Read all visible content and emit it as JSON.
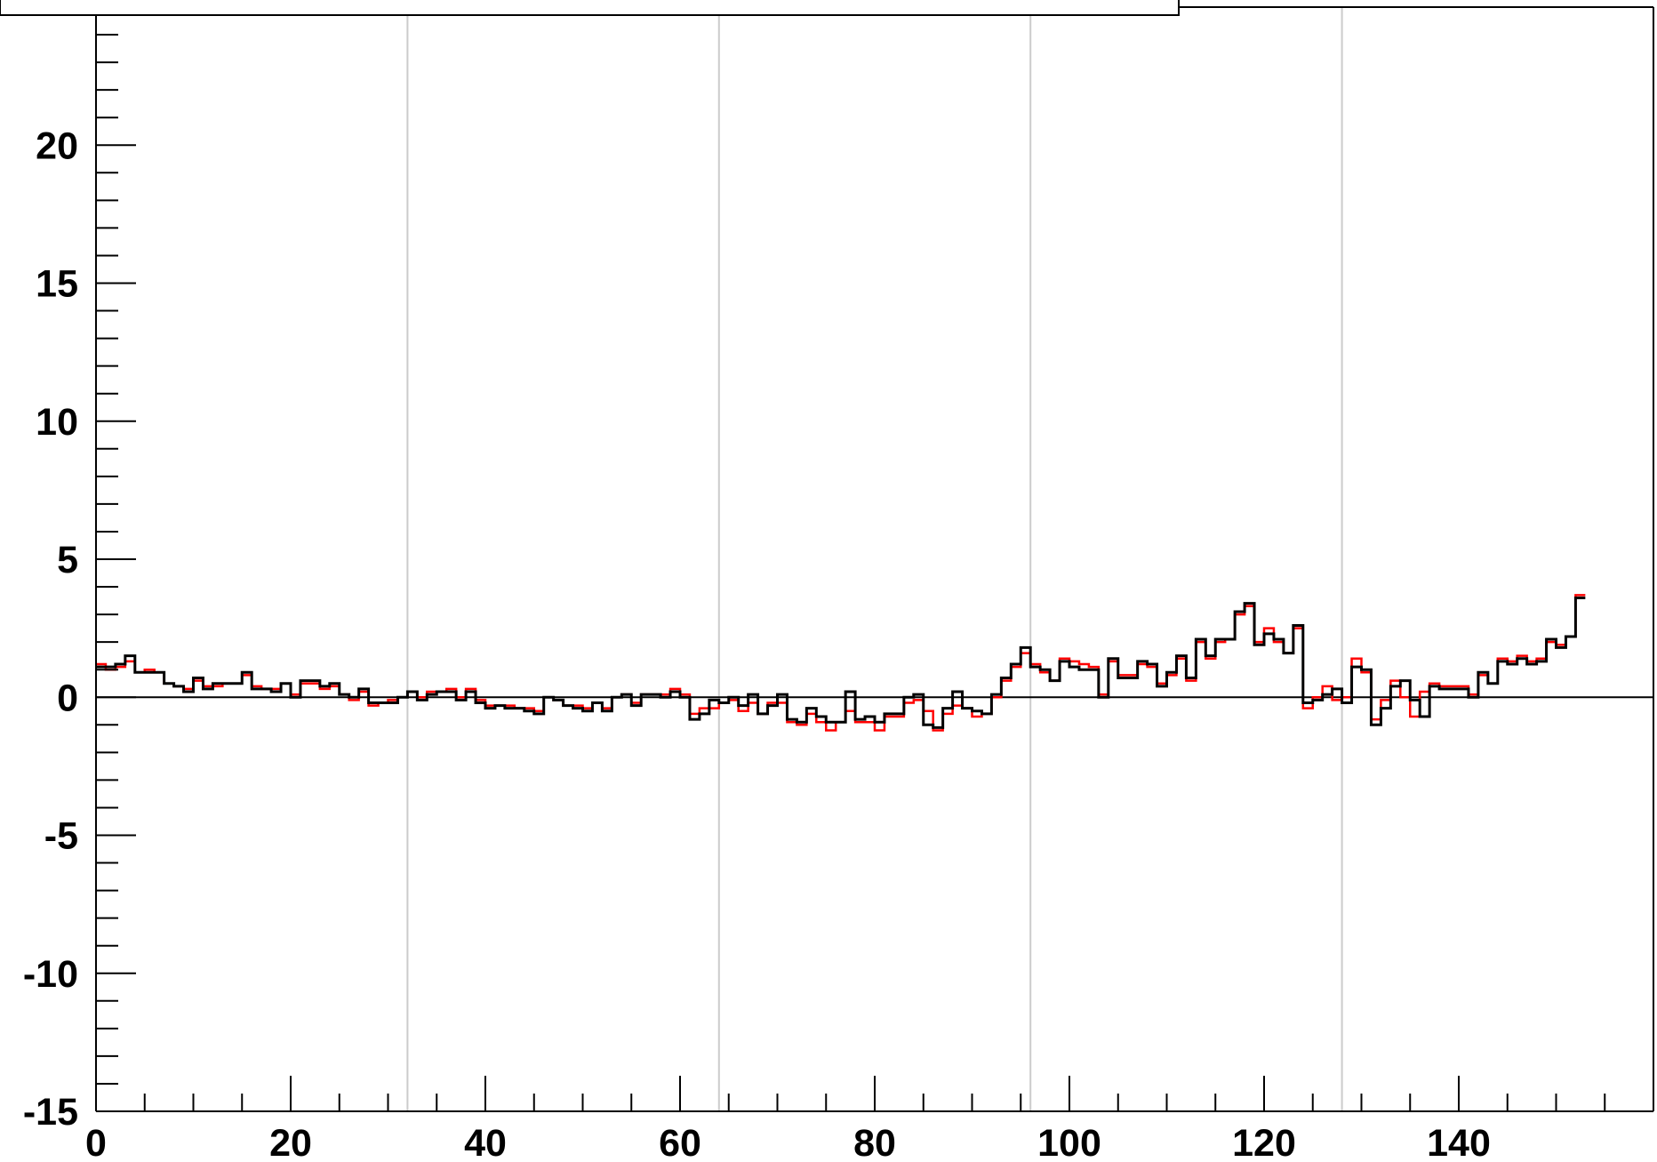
{
  "chart_data": {
    "type": "line",
    "title": "",
    "xlabel": "",
    "ylabel": "",
    "xlim": [
      0,
      160
    ],
    "ylim": [
      -15,
      25
    ],
    "x_ticks": [
      0,
      20,
      40,
      60,
      80,
      100,
      120,
      140
    ],
    "x_tick_labels": [
      "0",
      "20",
      "40",
      "60",
      "80",
      "100",
      "120",
      "140"
    ],
    "y_ticks": [
      -15,
      -10,
      -5,
      0,
      5,
      10,
      15,
      20
    ],
    "y_tick_labels": [
      "-15",
      "-10",
      "-5",
      "0",
      "5",
      "10",
      "15",
      "20"
    ],
    "gridlines_x": [
      32,
      64,
      96,
      128
    ],
    "reference_line_y": 0,
    "colors": {
      "series_1": "#ff0000",
      "series_2": "#000000",
      "grid": "#cccccc"
    },
    "bin_width": 1,
    "series": [
      {
        "values": [
          1.2,
          1.0,
          1.1,
          1.3,
          0.9,
          1.0,
          0.9,
          0.5,
          0.4,
          0.3,
          0.6,
          0.4,
          0.4,
          0.5,
          0.5,
          0.8,
          0.4,
          0.3,
          0.3,
          0.5,
          0.1,
          0.5,
          0.5,
          0.3,
          0.4,
          0.1,
          -0.1,
          0.2,
          -0.3,
          -0.2,
          -0.1,
          0.0,
          0.2,
          0.0,
          0.2,
          0.2,
          0.3,
          0.0,
          0.3,
          -0.1,
          -0.3,
          -0.3,
          -0.3,
          -0.4,
          -0.4,
          -0.5,
          0.0,
          -0.1,
          -0.3,
          -0.3,
          -0.4,
          -0.2,
          -0.4,
          0.0,
          0.1,
          -0.2,
          0.1,
          0.1,
          0.1,
          0.3,
          0.1,
          -0.6,
          -0.4,
          -0.4,
          -0.2,
          -0.1,
          -0.5,
          -0.2,
          -0.6,
          -0.2,
          -0.2,
          -0.9,
          -1.0,
          -0.6,
          -0.9,
          -1.2,
          -0.9,
          -0.5,
          -0.9,
          -0.9,
          -1.2,
          -0.7,
          -0.7,
          -0.2,
          -0.1,
          -0.5,
          -1.2,
          -0.6,
          -0.3,
          -0.4,
          -0.7,
          -0.6,
          0.0,
          0.6,
          1.1,
          1.6,
          1.2,
          0.9,
          0.6,
          1.4,
          1.3,
          1.2,
          1.1,
          0.1,
          1.3,
          0.8,
          0.8,
          1.2,
          1.1,
          0.5,
          0.8,
          1.4,
          0.6,
          2.0,
          1.4,
          2.0,
          2.1,
          3.0,
          3.3,
          2.0,
          2.5,
          2.0,
          1.6,
          2.5,
          -0.4,
          0.0,
          0.4,
          -0.1,
          0.0,
          1.4,
          0.9,
          -0.8,
          -0.1,
          0.6,
          0.0,
          -0.7,
          0.2,
          0.5,
          0.4,
          0.4,
          0.4,
          0.1,
          0.8,
          0.5,
          1.4,
          1.3,
          1.5,
          1.3,
          1.4,
          2.0,
          1.9,
          2.2,
          3.7
        ]
      },
      {
        "values": [
          1.1,
          1.1,
          1.2,
          1.5,
          0.9,
          0.9,
          0.9,
          0.5,
          0.4,
          0.2,
          0.7,
          0.3,
          0.5,
          0.5,
          0.5,
          0.9,
          0.3,
          0.3,
          0.2,
          0.5,
          0.0,
          0.6,
          0.6,
          0.4,
          0.5,
          0.1,
          0.0,
          0.3,
          -0.2,
          -0.2,
          -0.2,
          0.0,
          0.2,
          -0.1,
          0.1,
          0.2,
          0.2,
          -0.1,
          0.2,
          -0.2,
          -0.4,
          -0.3,
          -0.4,
          -0.4,
          -0.5,
          -0.6,
          0.0,
          -0.1,
          -0.3,
          -0.4,
          -0.5,
          -0.2,
          -0.5,
          0.0,
          0.1,
          -0.3,
          0.1,
          0.1,
          0.0,
          0.2,
          0.0,
          -0.8,
          -0.6,
          -0.1,
          -0.2,
          0.0,
          -0.3,
          0.1,
          -0.6,
          -0.3,
          0.1,
          -0.8,
          -0.9,
          -0.4,
          -0.7,
          -0.9,
          -0.9,
          0.2,
          -0.8,
          -0.7,
          -0.9,
          -0.6,
          -0.6,
          0.0,
          0.1,
          -1.0,
          -1.1,
          -0.4,
          0.2,
          -0.4,
          -0.5,
          -0.6,
          0.1,
          0.7,
          1.2,
          1.8,
          1.1,
          1.0,
          0.6,
          1.3,
          1.1,
          1.0,
          1.0,
          0.0,
          1.4,
          0.7,
          0.7,
          1.3,
          1.2,
          0.4,
          0.9,
          1.5,
          0.7,
          2.1,
          1.5,
          2.1,
          2.1,
          3.1,
          3.4,
          1.9,
          2.3,
          2.1,
          1.6,
          2.6,
          -0.2,
          -0.1,
          0.1,
          0.3,
          -0.2,
          1.1,
          1.0,
          -1.0,
          -0.4,
          0.4,
          0.6,
          -0.1,
          -0.7,
          0.4,
          0.3,
          0.3,
          0.3,
          0.0,
          0.9,
          0.5,
          1.3,
          1.2,
          1.4,
          1.2,
          1.3,
          2.1,
          1.8,
          2.2,
          3.6
        ]
      }
    ]
  }
}
